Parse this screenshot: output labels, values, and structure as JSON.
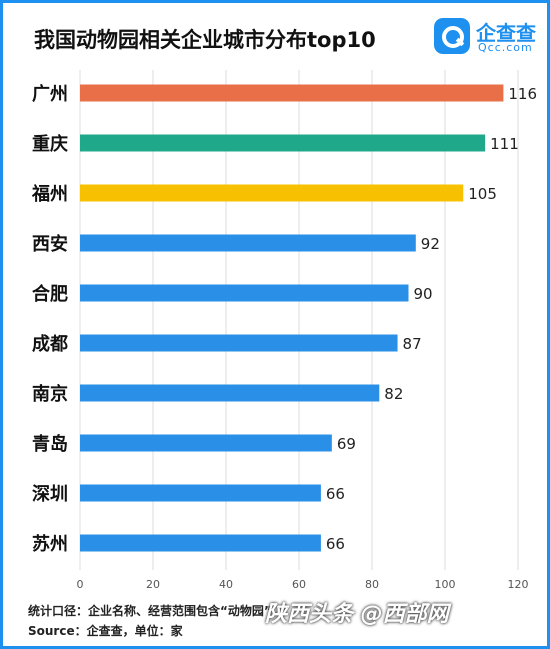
{
  "header": {
    "title": "我国动物园相关企业城市分布top10",
    "logo_name": "企查查",
    "logo_domain": "Qcc.com"
  },
  "chart_data": {
    "type": "bar",
    "orientation": "horizontal",
    "title": "我国动物园相关企业城市分布top10",
    "categories": [
      "广州",
      "重庆",
      "福州",
      "西安",
      "合肥",
      "成都",
      "南京",
      "青岛",
      "深圳",
      "苏州"
    ],
    "values": [
      116,
      111,
      105,
      92,
      90,
      87,
      82,
      69,
      66,
      66
    ],
    "bar_colors": [
      "#e86f47",
      "#1fa88a",
      "#f7c000",
      "#2a8fe6",
      "#2a8fe6",
      "#2a8fe6",
      "#2a8fe6",
      "#2a8fe6",
      "#2a8fe6",
      "#2a8fe6"
    ],
    "xlim": [
      0,
      120
    ],
    "xticks": [
      0,
      20,
      40,
      60,
      80,
      100,
      120
    ],
    "grid": true,
    "legend": "none"
  },
  "footer": {
    "scope_note": "统计口径：企业名称、经营范围包含“动物园”",
    "source": "Source：企查查，单位：家"
  },
  "watermark": "陕西头条 @西部网",
  "colors": {
    "frame": "#1e90f0",
    "accent": "#1e90f0"
  }
}
